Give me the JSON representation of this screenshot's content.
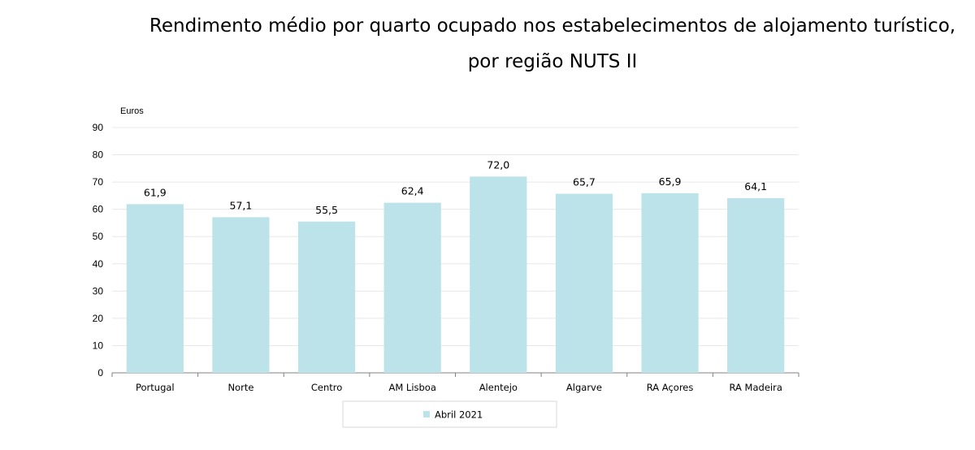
{
  "chart_data": {
    "type": "bar",
    "title_lines": [
      "Rendimento médio por quarto ocupado nos estabelecimentos de alojamento turístico,",
      "por região NUTS II"
    ],
    "unit_label": "Euros",
    "categories": [
      "Portugal",
      "Norte",
      "Centro",
      "AM Lisboa",
      "Alentejo",
      "Algarve",
      "RA Açores",
      "RA Madeira"
    ],
    "series": [
      {
        "name": "Abril 2021",
        "color": "#bde3ea",
        "values": [
          61.9,
          57.1,
          55.5,
          62.4,
          72.0,
          65.7,
          65.9,
          64.1
        ],
        "labels": [
          "61,9",
          "57,1",
          "55,5",
          "62,4",
          "72,0",
          "65,7",
          "65,9",
          "64,1"
        ]
      }
    ],
    "ylim": [
      0,
      90
    ],
    "yticks": [
      0,
      10,
      20,
      30,
      40,
      50,
      60,
      70,
      80,
      90
    ],
    "grid": true,
    "legend_position": "bottom"
  }
}
